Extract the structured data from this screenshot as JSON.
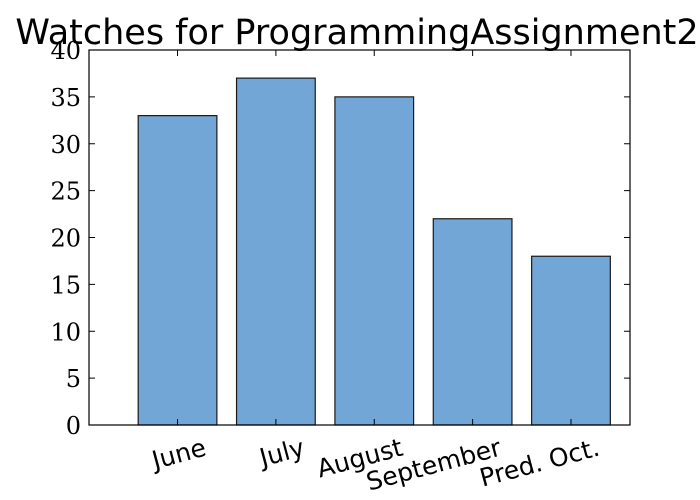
{
  "chart_data": {
    "type": "bar",
    "title": "Watches for ProgrammingAssignment2",
    "categories": [
      "June",
      "July",
      "August",
      "September",
      "Pred. Oct."
    ],
    "values": [
      33,
      37,
      35,
      22,
      18
    ],
    "xlabel": "",
    "ylabel": "",
    "ylim": [
      0,
      40
    ],
    "yticks": [
      "0",
      "5",
      "10",
      "15",
      "20",
      "25",
      "30",
      "35",
      "40"
    ],
    "grid": false,
    "colors": {
      "bar": "#72a6d6",
      "edge": "#1a1a1a"
    }
  }
}
